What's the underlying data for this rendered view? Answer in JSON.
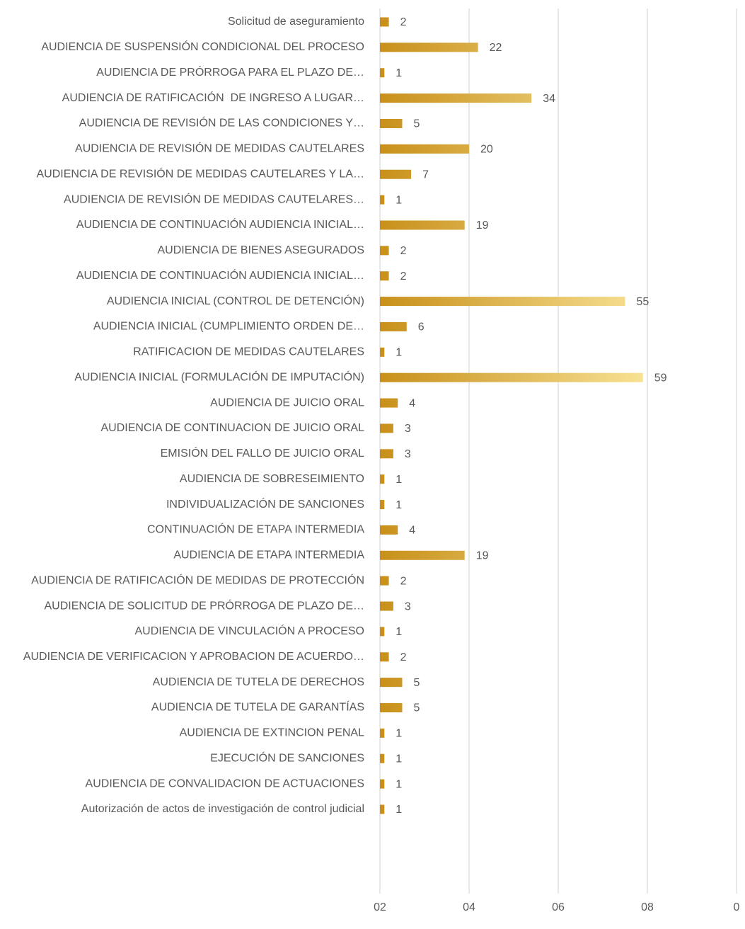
{
  "chart_data": {
    "type": "hbar",
    "categories": [
      "Solicitud de aseguramiento",
      "AUDIENCIA DE SUSPENSIÓN CONDICIONAL DEL PROCESO",
      "AUDIENCIA DE PRÓRROGA PARA EL PLAZO DE…",
      "AUDIENCIA DE RATIFICACIÓN  DE INGRESO A LUGAR…",
      "AUDIENCIA DE REVISIÓN DE LAS CONDICIONES Y…",
      "AUDIENCIA DE REVISIÓN DE MEDIDAS CAUTELARES",
      "AUDIENCIA DE REVISIÓN DE MEDIDAS CAUTELARES Y LA…",
      "AUDIENCIA DE REVISIÓN DE MEDIDAS CAUTELARES…",
      "AUDIENCIA DE CONTINUACIÓN AUDIENCIA INICIAL…",
      "AUDIENCIA DE BIENES ASEGURADOS",
      "AUDIENCIA DE CONTINUACIÓN AUDIENCIA INICIAL…",
      "AUDIENCIA INICIAL (CONTROL DE DETENCIÓN)",
      "AUDIENCIA INICIAL (CUMPLIMIENTO ORDEN DE…",
      "RATIFICACION DE MEDIDAS CAUTELARES",
      "AUDIENCIA INICIAL (FORMULACIÓN DE IMPUTACIÓN)",
      "AUDIENCIA DE JUICIO ORAL",
      "AUDIENCIA DE CONTINUACION DE JUICIO ORAL",
      "EMISIÓN DEL FALLO DE JUICIO ORAL",
      "AUDIENCIA DE SOBRESEIMIENTO",
      "INDIVIDUALIZACIÓN DE SANCIONES",
      "CONTINUACIÓN DE ETAPA INTERMEDIA",
      "AUDIENCIA DE ETAPA INTERMEDIA",
      "AUDIENCIA DE RATIFICACIÓN DE MEDIDAS DE PROTECCIÓN",
      "AUDIENCIA DE SOLICITUD DE PRÓRROGA DE PLAZO DE…",
      "AUDIENCIA DE VINCULACIÓN A PROCESO",
      "AUDIENCIA DE VERIFICACION Y APROBACION DE ACUERDO…",
      "AUDIENCIA DE TUTELA DE DERECHOS",
      "AUDIENCIA DE TUTELA DE GARANTÍAS",
      "AUDIENCIA DE EXTINCION PENAL",
      "EJECUCIÓN DE SANCIONES",
      "AUDIENCIA DE CONVALIDACION DE ACTUACIONES",
      "Autorización de actos de investigación de control judicial"
    ],
    "values": [
      2,
      22,
      1,
      34,
      5,
      20,
      7,
      1,
      19,
      2,
      2,
      55,
      6,
      1,
      59,
      4,
      3,
      3,
      1,
      1,
      4,
      19,
      2,
      3,
      1,
      2,
      5,
      5,
      1,
      1,
      1,
      1
    ],
    "colors": [
      "#c8901a",
      "#f8e294"
    ],
    "xlim": [
      0,
      80
    ],
    "xticks": [
      {
        "value": 0,
        "label": "02"
      },
      {
        "value": 20,
        "label": "04"
      },
      {
        "value": 40,
        "label": "06"
      },
      {
        "value": 60,
        "label": "08"
      },
      {
        "value": 80,
        "label": "0"
      }
    ],
    "grid": true
  }
}
